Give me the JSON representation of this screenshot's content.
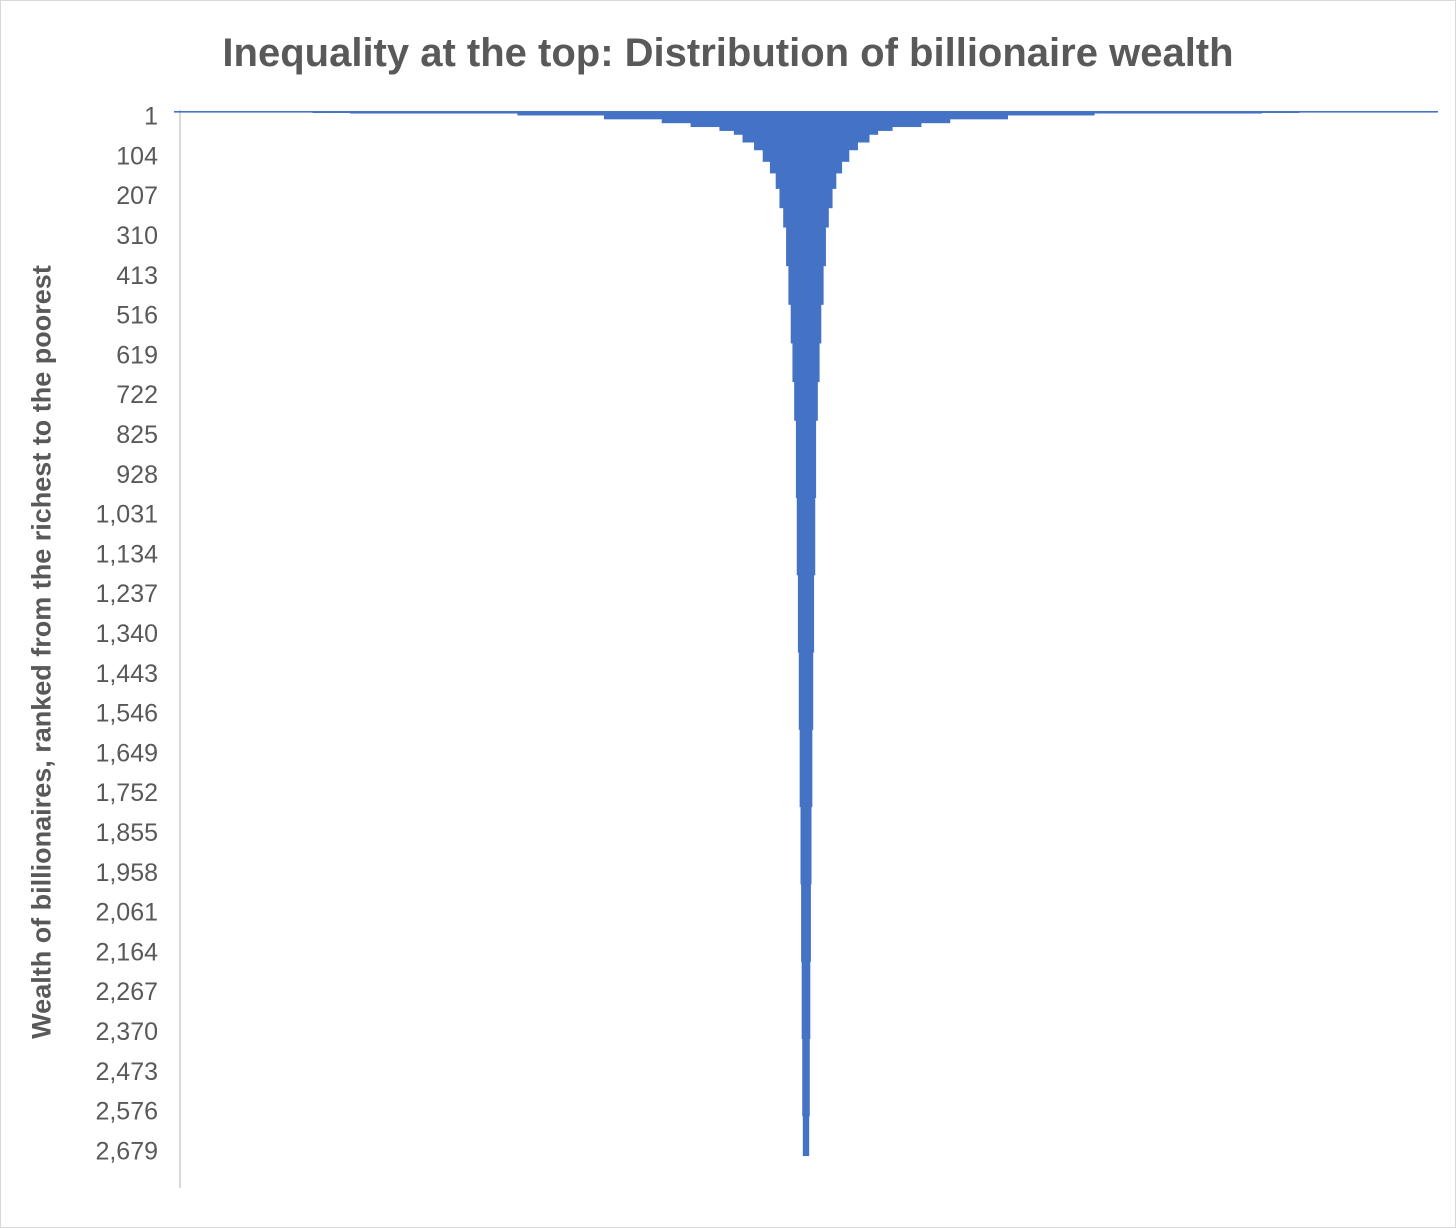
{
  "chart_data": {
    "type": "bar",
    "orientation": "horizontal",
    "title": "Inequality at the top: Distribution of billionaire wealth",
    "xlabel": "",
    "ylabel": "Wealth of billionaires, ranked from the richest to the poorest",
    "y_ticks": [
      "1",
      "104",
      "207",
      "310",
      "413",
      "516",
      "619",
      "722",
      "825",
      "928",
      "1,031",
      "1,134",
      "1,237",
      "1,340",
      "1,443",
      "1,546",
      "1,649",
      "1,752",
      "1,855",
      "1,958",
      "2,061",
      "2,164",
      "2,267",
      "2,370",
      "2,473",
      "2,576",
      "2,679"
    ],
    "ylim": [
      1,
      2700
    ],
    "y_reversed": true,
    "centered_bars": true,
    "grid": false,
    "legend": "none",
    "series_color": "#4472c4",
    "series": [
      {
        "rank": [
          1,
          2,
          3,
          6,
          11,
          21,
          31,
          41,
          51,
          61,
          81,
          101,
          131,
          161,
          201,
          251,
          301,
          401,
          501,
          601,
          701,
          801,
          1001,
          1201,
          1401,
          1601,
          1801,
          2001,
          2201,
          2401,
          2601,
          2700
        ],
        "wealth_billions": [
          219,
          171,
          158,
          100,
          70,
          50,
          40,
          30,
          25,
          22,
          18,
          15,
          12.5,
          10.5,
          9.2,
          7.9,
          6.9,
          6.1,
          5.3,
          4.7,
          4.1,
          3.5,
          3.2,
          2.8,
          2.5,
          2.2,
          1.9,
          1.7,
          1.5,
          1.3,
          1.1,
          1.0
        ]
      }
    ]
  }
}
